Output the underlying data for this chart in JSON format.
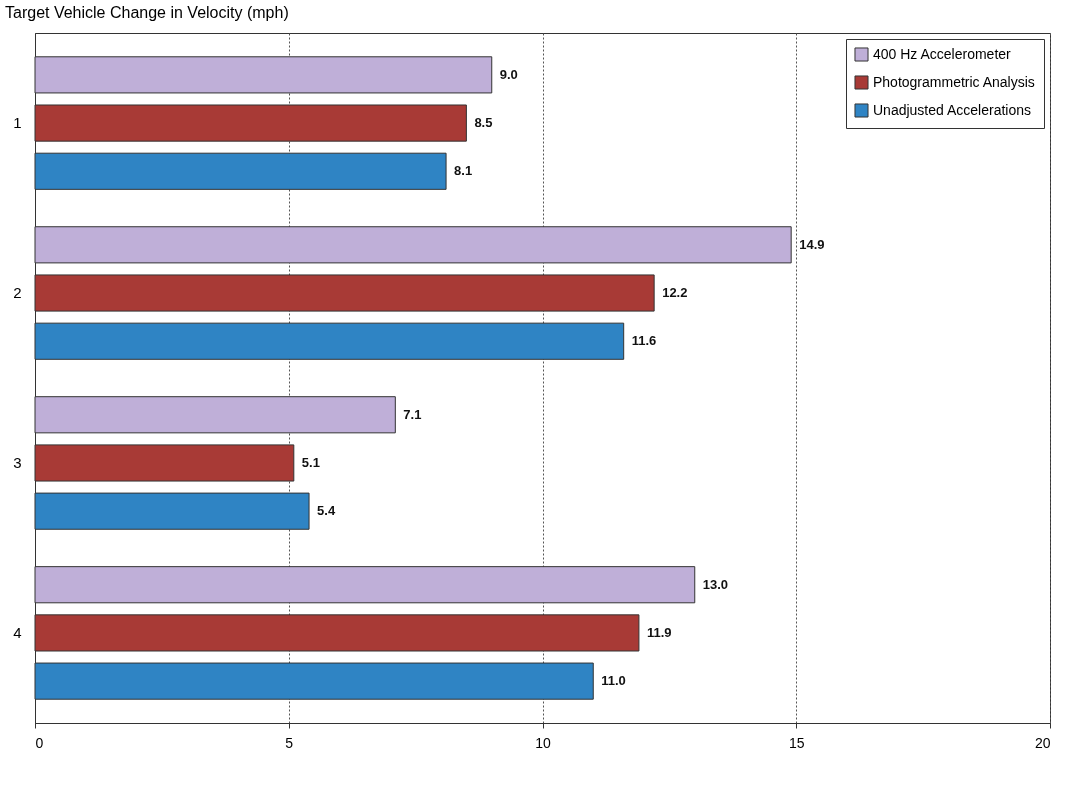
{
  "chart_data": {
    "type": "bar",
    "orientation": "horizontal",
    "title": "Target Vehicle Change in Velocity (mph)",
    "categories": [
      "1",
      "2",
      "3",
      "4"
    ],
    "series": [
      {
        "name": "400 Hz Accelerometer",
        "color": "#bfafd8",
        "values": [
          9.0,
          14.9,
          7.1,
          13.0
        ],
        "value_labels": [
          "9.0",
          "14.9",
          "7.1",
          "13.0"
        ]
      },
      {
        "name": "Photogrammetric Analysis",
        "color": "#a83a36",
        "values": [
          8.5,
          12.2,
          5.1,
          11.9
        ],
        "value_labels": [
          "8.5",
          "12.2",
          "5.1",
          "11.9"
        ]
      },
      {
        "name": "Unadjusted Accelerations",
        "color": "#2f84c4",
        "values": [
          8.1,
          11.6,
          5.4,
          11.0
        ],
        "value_labels": [
          "8.1",
          "11.6",
          "5.4",
          "11.0"
        ]
      }
    ],
    "xlim": [
      0,
      20
    ],
    "xticks": [
      0,
      5,
      10,
      15,
      20
    ],
    "grid": "x",
    "legend": "top right"
  }
}
